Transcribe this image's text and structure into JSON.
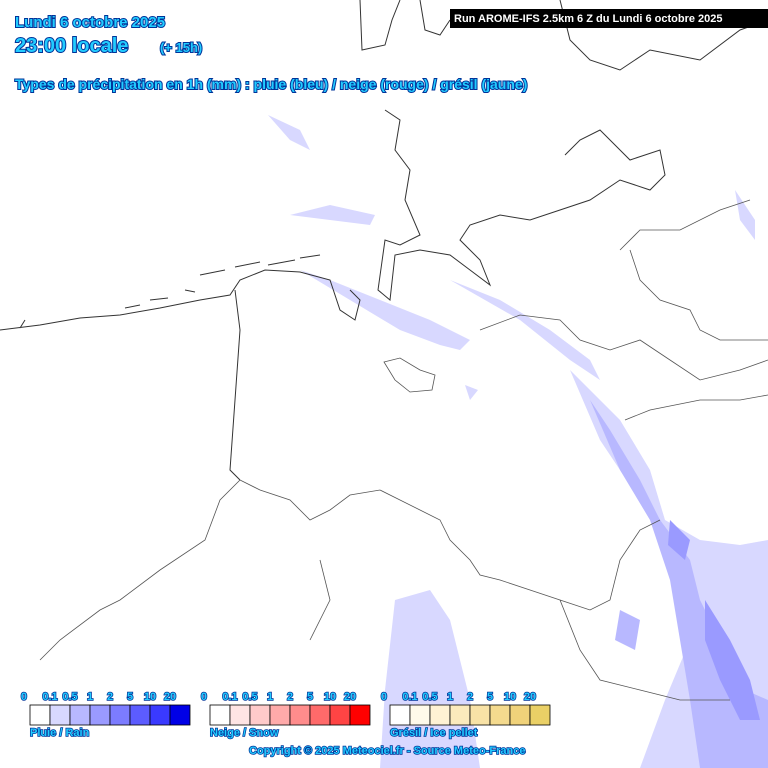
{
  "header": {
    "date": "Lundi 6 octobre 2025",
    "time": "23:00 locale",
    "lead": "(+ 15h)",
    "subtitle": "Types de précipitation en 1h (mm) : pluie (bleu) / neige (rouge) / grésil (jaune)",
    "run": "Run AROME-IFS 2.5km 6 Z du Lundi 6 octobre 2025"
  },
  "legends": [
    {
      "name": "Pluie / Rain",
      "ticks": [
        0,
        0.1,
        0.5,
        1,
        2,
        5,
        10,
        20
      ],
      "colors": [
        "#ffffff",
        "#d8d8ff",
        "#b8b8ff",
        "#9a9aff",
        "#7c7cff",
        "#5c5cff",
        "#3a3aff",
        "#0000e6"
      ]
    },
    {
      "name": "Neige / Snow",
      "ticks": [
        0,
        0.1,
        0.5,
        1,
        2,
        5,
        10,
        20
      ],
      "colors": [
        "#ffffff",
        "#ffe4e4",
        "#ffcaca",
        "#ffaaaa",
        "#ff8c8c",
        "#ff6a6a",
        "#ff4444",
        "#ff0000"
      ]
    },
    {
      "name": "Grésil / Ice pellet",
      "ticks": [
        0,
        0.1,
        0.5,
        1,
        2,
        5,
        10,
        20
      ],
      "colors": [
        "#ffffff",
        "#fffaea",
        "#fff2d4",
        "#fbeabc",
        "#f8e2a6",
        "#f4da8e",
        "#f0d27a",
        "#ead066"
      ]
    }
  ],
  "footer": {
    "copyright": "Copyright © 2025 Meteociel.fr - Source Meteo-France"
  }
}
